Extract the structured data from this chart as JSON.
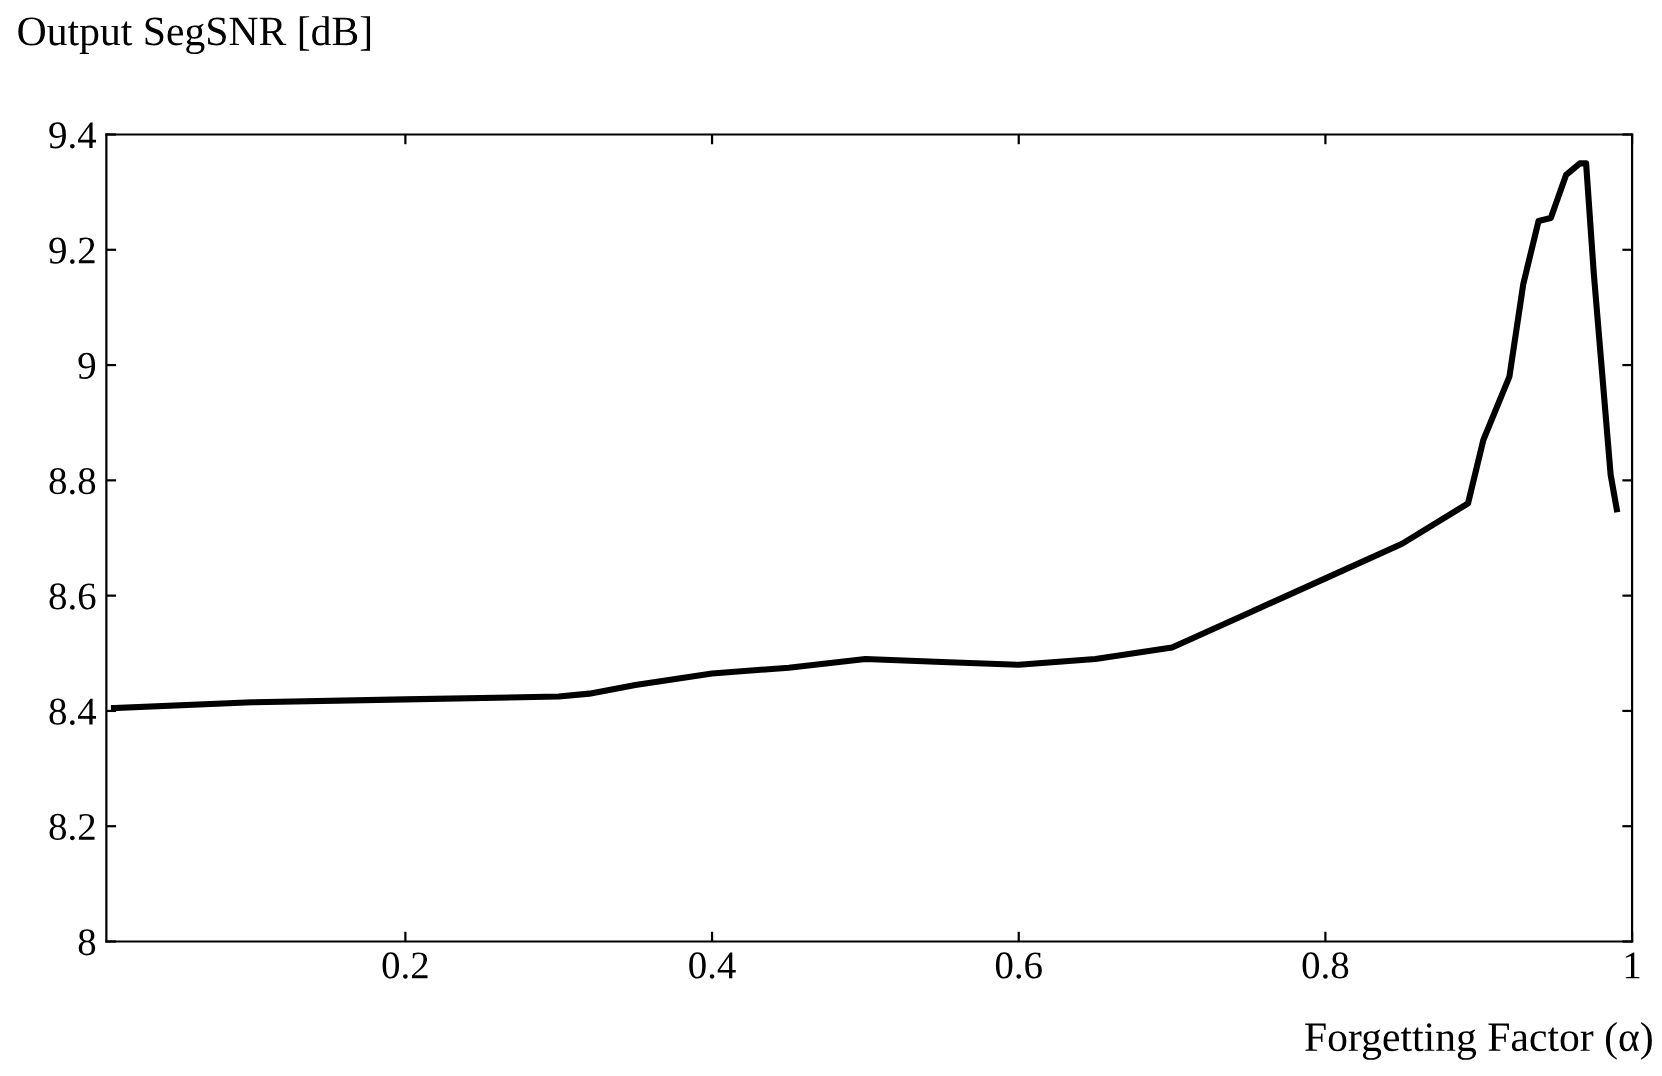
{
  "chart_data": {
    "type": "line",
    "xlabel": "Forgetting Factor (α)",
    "ylabel": "Output SegSNR [dB]",
    "x": [
      0.01,
      0.1,
      0.2,
      0.3,
      0.32,
      0.35,
      0.4,
      0.45,
      0.5,
      0.55,
      0.6,
      0.65,
      0.7,
      0.75,
      0.8,
      0.85,
      0.893,
      0.903,
      0.92,
      0.929,
      0.939,
      0.947,
      0.957,
      0.966,
      0.97,
      0.975,
      0.986,
      0.99
    ],
    "series": [
      {
        "color": "#000000",
        "values": [
          8.405,
          8.415,
          8.42,
          8.425,
          8.43,
          8.445,
          8.465,
          8.475,
          8.49,
          8.485,
          8.48,
          8.49,
          8.51,
          8.57,
          8.63,
          8.69,
          8.76,
          8.87,
          8.98,
          9.14,
          9.25,
          9.255,
          9.33,
          9.35,
          9.35,
          9.16,
          8.81,
          8.75
        ]
      }
    ],
    "xlim": [
      0.005,
      1
    ],
    "ylim": [
      8,
      9.4
    ],
    "xticks": [
      0.2,
      0.4,
      0.6,
      0.8,
      1
    ],
    "yticks": [
      8,
      8.2,
      8.4,
      8.6,
      8.8,
      9,
      9.2,
      9.4
    ],
    "grid": false,
    "legend": false,
    "line_style": "solid",
    "marker": "none"
  }
}
